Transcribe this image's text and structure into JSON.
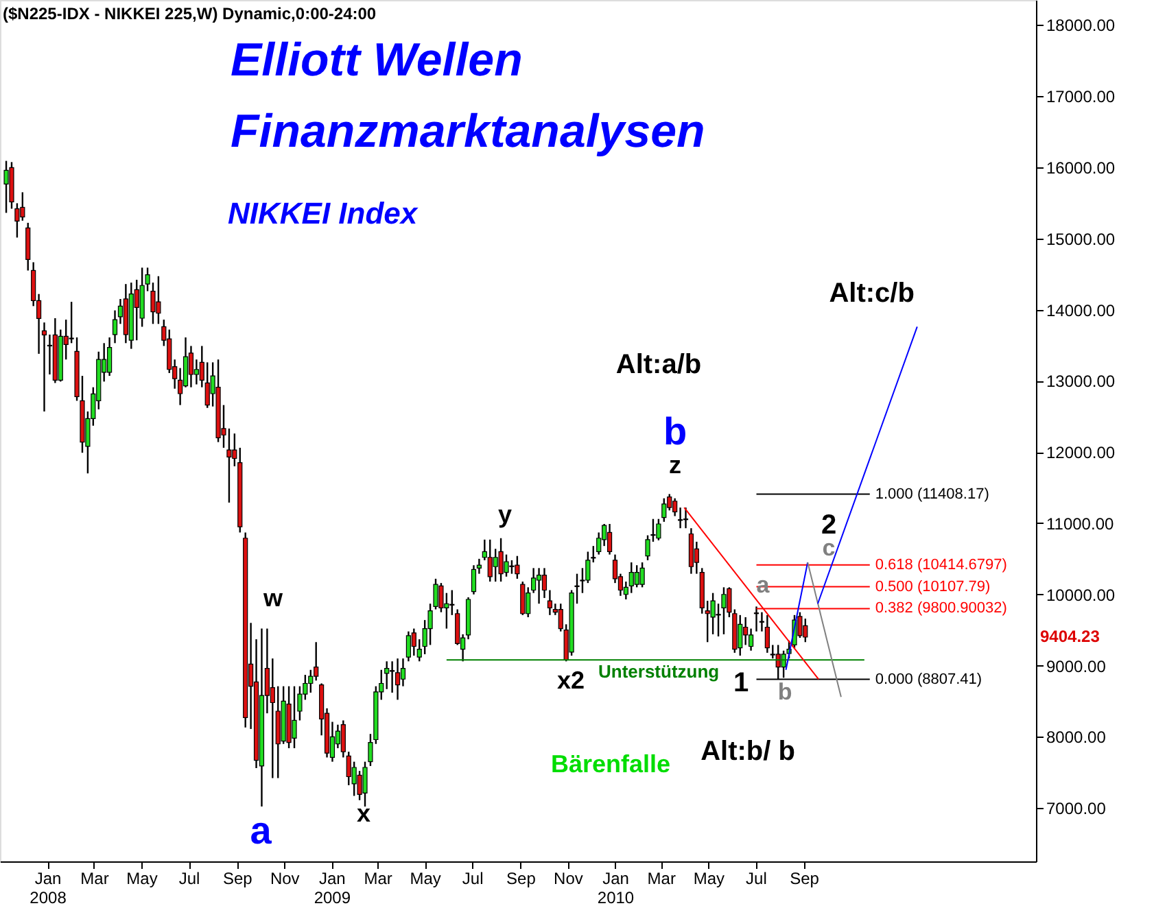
{
  "chart_data": {
    "type": "candlestick",
    "title": "Elliott Wellen\nFinanzmarktanalysen",
    "subtitle": "NIKKEI Index",
    "x": [
      "2007-11-09",
      "2007-11-16",
      "2007-11-23",
      "2007-11-30",
      "2007-12-07",
      "2007-12-14",
      "2007-12-21",
      "2007-12-28",
      "2008-01-04",
      "2008-01-11",
      "2008-01-18",
      "2008-01-25",
      "2008-02-01",
      "2008-02-08",
      "2008-02-15",
      "2008-02-22",
      "2008-02-29",
      "2008-03-07",
      "2008-03-14",
      "2008-03-21",
      "2008-03-28",
      "2008-04-04",
      "2008-04-11",
      "2008-04-18",
      "2008-04-25",
      "2008-05-02",
      "2008-05-09",
      "2008-05-16",
      "2008-05-23",
      "2008-05-30",
      "2008-06-06",
      "2008-06-13",
      "2008-06-20",
      "2008-06-27",
      "2008-07-04",
      "2008-07-11",
      "2008-07-18",
      "2008-07-25",
      "2008-08-01",
      "2008-08-08",
      "2008-08-15",
      "2008-08-22",
      "2008-08-29",
      "2008-09-05",
      "2008-09-12",
      "2008-09-19",
      "2008-09-26",
      "2008-10-03",
      "2008-10-10",
      "2008-10-17",
      "2008-10-24",
      "2008-10-31",
      "2008-11-07",
      "2008-11-14",
      "2008-11-21",
      "2008-11-28",
      "2008-12-05",
      "2008-12-12",
      "2008-12-19",
      "2008-12-26",
      "2009-01-02",
      "2009-01-09",
      "2009-01-16",
      "2009-01-23",
      "2009-01-30",
      "2009-02-06",
      "2009-02-13",
      "2009-02-20",
      "2009-02-27",
      "2009-03-06",
      "2009-03-13",
      "2009-03-20",
      "2009-03-27",
      "2009-04-03",
      "2009-04-10",
      "2009-04-17",
      "2009-04-24",
      "2009-05-01",
      "2009-05-08",
      "2009-05-15",
      "2009-05-22",
      "2009-05-29",
      "2009-06-05",
      "2009-06-12",
      "2009-06-19",
      "2009-06-26",
      "2009-07-03",
      "2009-07-10",
      "2009-07-17",
      "2009-07-24",
      "2009-07-31",
      "2009-08-07",
      "2009-08-14",
      "2009-08-21",
      "2009-08-28",
      "2009-09-04",
      "2009-09-11",
      "2009-09-18",
      "2009-09-25",
      "2009-10-02",
      "2009-10-09",
      "2009-10-16",
      "2009-10-23",
      "2009-10-30",
      "2009-11-06",
      "2009-11-13",
      "2009-11-20",
      "2009-11-27",
      "2009-12-04",
      "2009-12-11",
      "2009-12-18",
      "2009-12-25",
      "2010-01-01",
      "2010-01-08",
      "2010-01-15",
      "2010-01-22",
      "2010-01-29",
      "2010-02-05",
      "2010-02-12",
      "2010-02-19",
      "2010-02-26",
      "2010-03-05",
      "2010-03-12",
      "2010-03-19",
      "2010-03-26",
      "2010-04-02",
      "2010-04-09",
      "2010-04-16",
      "2010-04-23",
      "2010-04-30",
      "2010-05-07",
      "2010-05-14",
      "2010-05-21",
      "2010-05-28",
      "2010-06-04",
      "2010-06-11",
      "2010-06-18",
      "2010-06-25",
      "2010-07-02",
      "2010-07-09",
      "2010-07-16",
      "2010-07-23",
      "2010-07-30",
      "2010-08-06",
      "2010-08-13",
      "2010-08-20",
      "2010-08-27",
      "2010-09-03"
    ],
    "ohlc": [
      [
        15765,
        16090,
        15360,
        15957
      ],
      [
        15996,
        16073,
        15418,
        15514
      ],
      [
        15418,
        15495,
        15013,
        15244
      ],
      [
        15437,
        15649,
        15250,
        15302
      ],
      [
        15148,
        15220,
        14550,
        14705
      ],
      [
        14551,
        14666,
        14050,
        14127
      ],
      [
        14127,
        14220,
        13380,
        13876
      ],
      [
        13703,
        13820,
        12570,
        13645
      ],
      [
        13500,
        13650,
        13090,
        13490
      ],
      [
        13645,
        13880,
        12970,
        13009
      ],
      [
        13009,
        13720,
        12990,
        13626
      ],
      [
        13626,
        13860,
        13300,
        13510
      ],
      [
        13600,
        14110,
        13530,
        13590
      ],
      [
        13414,
        13610,
        12720,
        12778
      ],
      [
        12720,
        13070,
        11990,
        12140
      ],
      [
        12080,
        12570,
        11700,
        12470
      ],
      [
        12470,
        12910,
        12370,
        12816
      ],
      [
        12720,
        13410,
        12600,
        13300
      ],
      [
        13120,
        13530,
        12990,
        13300
      ],
      [
        13120,
        13610,
        13070,
        13470
      ],
      [
        13650,
        13990,
        13530,
        13860
      ],
      [
        13900,
        14150,
        13800,
        14050
      ],
      [
        14150,
        14360,
        13530,
        13650
      ],
      [
        13570,
        14380,
        13450,
        14220
      ],
      [
        14280,
        14420,
        13570,
        14030
      ],
      [
        13880,
        14590,
        13760,
        14340
      ],
      [
        14360,
        14590,
        14260,
        14490
      ],
      [
        14260,
        14380,
        13800,
        13970
      ],
      [
        14110,
        14470,
        13800,
        13950
      ],
      [
        13760,
        13860,
        13490,
        13570
      ],
      [
        13590,
        13720,
        13110,
        13160
      ],
      [
        13200,
        13300,
        12890,
        13030
      ],
      [
        13010,
        13180,
        12660,
        12820
      ],
      [
        12930,
        13610,
        12910,
        13340
      ],
      [
        13390,
        13490,
        12910,
        13090
      ],
      [
        13090,
        13300,
        12950,
        13160
      ],
      [
        13260,
        13490,
        12910,
        13010
      ],
      [
        12970,
        13260,
        12620,
        12660
      ],
      [
        12820,
        13260,
        12640,
        13070
      ],
      [
        12910,
        13300,
        12140,
        12200
      ],
      [
        12330,
        12660,
        12060,
        12240
      ],
      [
        12030,
        12330,
        11290,
        11930
      ],
      [
        12030,
        12260,
        11800,
        11910
      ],
      [
        11850,
        12060,
        10870,
        10950
      ],
      [
        10790,
        10870,
        8130,
        8270
      ],
      [
        9020,
        9600,
        8110,
        8710
      ],
      [
        8770,
        9370,
        7560,
        7670
      ],
      [
        7590,
        9520,
        7020,
        8580
      ],
      [
        8960,
        9520,
        8330,
        8580
      ],
      [
        8690,
        9100,
        7420,
        8480
      ],
      [
        8360,
        8710,
        7420,
        7900
      ],
      [
        7940,
        8710,
        7900,
        8500
      ],
      [
        8460,
        8710,
        7840,
        7920
      ],
      [
        7980,
        8710,
        7840,
        8230
      ],
      [
        8360,
        8710,
        8230,
        8600
      ],
      [
        8600,
        8870,
        8520,
        8750
      ],
      [
        8750,
        8940,
        8620,
        8850
      ],
      [
        8980,
        9330,
        8790,
        8850
      ],
      [
        8730,
        8750,
        8020,
        8250
      ],
      [
        8330,
        8400,
        7710,
        7770
      ],
      [
        7710,
        8210,
        7650,
        8000
      ],
      [
        7900,
        8170,
        7840,
        8080
      ],
      [
        8170,
        8230,
        7710,
        7790
      ],
      [
        7730,
        7790,
        7320,
        7440
      ],
      [
        7340,
        7650,
        7170,
        7570
      ],
      [
        7460,
        7520,
        7110,
        7190
      ],
      [
        7210,
        7650,
        7020,
        7570
      ],
      [
        7650,
        8040,
        7590,
        7920
      ],
      [
        7960,
        8710,
        7900,
        8630
      ],
      [
        8630,
        8940,
        8520,
        8750
      ],
      [
        8890,
        9060,
        8670,
        8960
      ],
      [
        8930,
        9060,
        8620,
        8920
      ],
      [
        8900,
        9100,
        8520,
        8730
      ],
      [
        8810,
        9100,
        8710,
        8960
      ],
      [
        9120,
        9480,
        9060,
        9420
      ],
      [
        9460,
        9520,
        9140,
        9270
      ],
      [
        9120,
        9370,
        9060,
        9230
      ],
      [
        9270,
        9640,
        9160,
        9520
      ],
      [
        9520,
        9870,
        9290,
        9770
      ],
      [
        9830,
        10220,
        9790,
        10140
      ],
      [
        10120,
        10160,
        9750,
        9810
      ],
      [
        9810,
        10020,
        9520,
        9870
      ],
      [
        9860,
        10060,
        9710,
        9850
      ],
      [
        9730,
        9790,
        9290,
        9310
      ],
      [
        9230,
        9440,
        9060,
        9390
      ],
      [
        9430,
        9960,
        9370,
        9930
      ],
      [
        10040,
        10410,
        10000,
        10350
      ],
      [
        10370,
        10500,
        10290,
        10410
      ],
      [
        10520,
        10770,
        10480,
        10600
      ],
      [
        10520,
        10770,
        10180,
        10250
      ],
      [
        10390,
        10640,
        10180,
        10520
      ],
      [
        10600,
        10790,
        10180,
        10290
      ],
      [
        10310,
        10560,
        10250,
        10460
      ],
      [
        10400,
        10480,
        10290,
        10390
      ],
      [
        10410,
        10540,
        10220,
        10290
      ],
      [
        10140,
        10180,
        9710,
        9730
      ],
      [
        9730,
        10100,
        9680,
        10020
      ],
      [
        10060,
        10370,
        10020,
        10230
      ],
      [
        10200,
        10370,
        9870,
        10270
      ],
      [
        10270,
        10370,
        9950,
        10060
      ],
      [
        9910,
        10060,
        9710,
        9810
      ],
      [
        9790,
        9870,
        9710,
        9750
      ],
      [
        9790,
        9870,
        9480,
        9520
      ],
      [
        9500,
        9580,
        9060,
        9080
      ],
      [
        9190,
        10060,
        9140,
        10020
      ],
      [
        10120,
        10290,
        9870,
        10110
      ],
      [
        10200,
        10370,
        10020,
        10190
      ],
      [
        10200,
        10600,
        10160,
        10480
      ],
      [
        10520,
        10680,
        10450,
        10510
      ],
      [
        10600,
        10870,
        10560,
        10790
      ],
      [
        10770,
        10990,
        10680,
        10970
      ],
      [
        10870,
        10990,
        10560,
        10600
      ],
      [
        10480,
        10560,
        10160,
        10220
      ],
      [
        10250,
        10290,
        9980,
        10060
      ],
      [
        10000,
        10180,
        9930,
        10100
      ],
      [
        10120,
        10450,
        10020,
        10310
      ],
      [
        10140,
        10410,
        10100,
        10310
      ],
      [
        10140,
        10450,
        10100,
        10370
      ],
      [
        10540,
        10830,
        10480,
        10770
      ],
      [
        10840,
        11060,
        10740,
        10830
      ],
      [
        10790,
        11060,
        10760,
        10990
      ],
      [
        11080,
        11350,
        11020,
        11270
      ],
      [
        11370,
        11410,
        11180,
        11220
      ],
      [
        11310,
        11350,
        11100,
        11160
      ],
      [
        11050,
        11220,
        10930,
        11040
      ],
      [
        11060,
        11220,
        10930,
        11050
      ],
      [
        10850,
        10930,
        10290,
        10390
      ],
      [
        10640,
        10740,
        10290,
        10450
      ],
      [
        10310,
        10370,
        9730,
        9810
      ],
      [
        9770,
        9910,
        9330,
        9730
      ],
      [
        9680,
        10020,
        9440,
        9910
      ],
      [
        9720,
        9870,
        9410,
        9710
      ],
      [
        9810,
        10100,
        9440,
        10000
      ],
      [
        10080,
        10100,
        9680,
        9750
      ],
      [
        9730,
        9790,
        9180,
        9230
      ],
      [
        9250,
        9710,
        9140,
        9580
      ],
      [
        9540,
        9680,
        9290,
        9430
      ],
      [
        9270,
        9520,
        9210,
        9430
      ],
      [
        9740,
        9830,
        9480,
        9730
      ],
      [
        9620,
        9750,
        9480,
        9610
      ],
      [
        9540,
        9710,
        9180,
        9250
      ],
      [
        9160,
        9290,
        9100,
        9150
      ],
      [
        9160,
        9290,
        8810,
        8980
      ],
      [
        8980,
        9210,
        8830,
        9160
      ],
      [
        9170,
        9350,
        9100,
        9230
      ],
      [
        9290,
        9710,
        9250,
        9640
      ],
      [
        9690,
        9750,
        9390,
        9420
      ],
      [
        9560,
        9660,
        9330,
        9400
      ]
    ],
    "series": [
      {
        "type": "line",
        "color": "#008000",
        "x": [
          "2009-05-29",
          "2010-11-18"
        ],
        "values": [
          9080,
          9080
        ]
      },
      {
        "type": "line",
        "name": "1.000 (11408.17)",
        "color": "#000000",
        "x": [
          "2010-07-02",
          "2010-11-25"
        ],
        "values": [
          11408.17,
          11408.17
        ]
      },
      {
        "type": "line",
        "name": "0.618 (10414.6797)",
        "color": "#ff0000",
        "x": [
          "2010-07-02",
          "2010-11-25"
        ],
        "values": [
          10414.6797,
          10414.6797
        ]
      },
      {
        "type": "line",
        "name": "0.500 (10107.79)",
        "color": "#ff0000",
        "x": [
          "2010-07-02",
          "2010-11-25"
        ],
        "values": [
          10107.79,
          10107.79
        ]
      },
      {
        "type": "line",
        "name": "0.382 (9800.90032)",
        "color": "#ff0000",
        "x": [
          "2010-07-02",
          "2010-11-25"
        ],
        "values": [
          9800.90032,
          9800.90032
        ]
      },
      {
        "type": "line",
        "name": "0.000 (8807.41)",
        "color": "#000000",
        "x": [
          "2010-07-02",
          "2010-11-25"
        ],
        "values": [
          8807.41,
          8807.41
        ]
      },
      {
        "type": "line",
        "color": "#ff0000",
        "x": [
          "2010-03-31",
          "2010-09-20"
        ],
        "values": [
          11220,
          8810
        ]
      },
      {
        "type": "line",
        "color": "#0000ff",
        "x": [
          "2010-08-09",
          "2010-09-06"
        ],
        "values": [
          8940,
          10450
        ]
      },
      {
        "type": "line",
        "color": "#808080",
        "x": [
          "2010-09-06",
          "2010-10-19"
        ],
        "values": [
          10450,
          8560
        ]
      },
      {
        "type": "line",
        "color": "#0000ff",
        "x": [
          "2010-09-19",
          "2011-01-25"
        ],
        "values": [
          9870,
          13760
        ]
      }
    ],
    "annotations": [
      "($N225-IDX - NIKKEI 225,W) Dynamic,0:00-24:00",
      "a",
      "w",
      "x",
      "y",
      "x2",
      "z",
      "b",
      "Alt:a/b",
      "1",
      "a",
      "b",
      "2",
      "c",
      "Alt:b/ b",
      {
        "text": "Alt:c/b",
        "x": "2011-01-25",
        "y": 13760
      },
      "Bärenfalle",
      "Unterstützung",
      "9404.23"
    ],
    "xlim": [
      "2007-11-01",
      "2011-06-27"
    ],
    "ylim": [
      6250,
      18350
    ],
    "xticks": [
      {
        "value": "2008-01-01",
        "label": "Jan 2008"
      },
      {
        "value": "2008-03-01",
        "label": "Mar"
      },
      {
        "value": "2008-05-01",
        "label": "May"
      },
      {
        "value": "2008-07-01",
        "label": "Jul"
      },
      {
        "value": "2008-09-01",
        "label": "Sep"
      },
      {
        "value": "2008-11-01",
        "label": "Nov"
      },
      {
        "value": "2009-01-01",
        "label": "Jan 2009"
      },
      {
        "value": "2009-03-01",
        "label": "Mar"
      },
      {
        "value": "2009-05-01",
        "label": "May"
      },
      {
        "value": "2009-07-01",
        "label": "Jul"
      },
      {
        "value": "2009-09-01",
        "label": "Sep"
      },
      {
        "value": "2009-11-01",
        "label": "Nov"
      },
      {
        "value": "2010-01-01",
        "label": "Jan 2010"
      },
      {
        "value": "2010-03-01",
        "label": "Mar"
      },
      {
        "value": "2010-05-01",
        "label": "May"
      },
      {
        "value": "2010-07-01",
        "label": "Jul"
      },
      {
        "value": "2010-09-01",
        "label": "Sep"
      }
    ],
    "yticks": [
      {
        "value": 7000,
        "label": "7000.00"
      },
      {
        "value": 8000,
        "label": "8000.00"
      },
      {
        "value": 9000,
        "label": "9000.00"
      },
      {
        "value": 10000,
        "label": "10000.00"
      },
      {
        "value": 11000,
        "label": "11000.00"
      },
      {
        "value": 12000,
        "label": "12000.00"
      },
      {
        "value": 13000,
        "label": "13000.00"
      },
      {
        "value": 14000,
        "label": "14000.00"
      },
      {
        "value": 15000,
        "label": "15000.00"
      },
      {
        "value": 16000,
        "label": "16000.00"
      },
      {
        "value": 17000,
        "label": "17000.00"
      },
      {
        "value": 18000,
        "label": "18000.00"
      }
    ]
  }
}
